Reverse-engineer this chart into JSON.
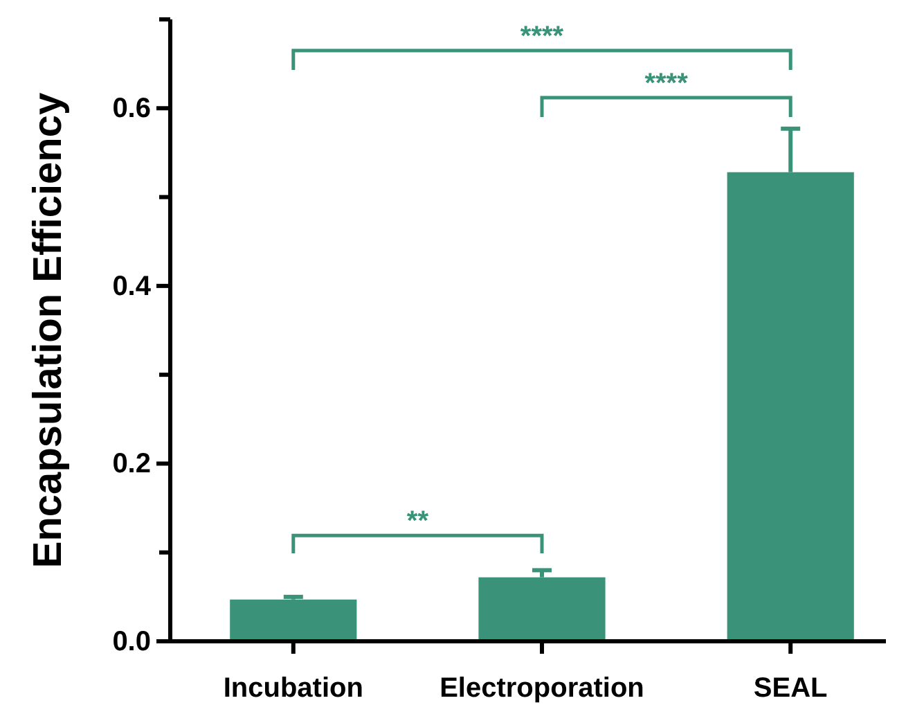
{
  "chart_data": {
    "type": "bar",
    "ylabel": "Encapsulation Efficiency",
    "categories": [
      "Incubation",
      "Electroporation",
      "SEAL"
    ],
    "values": [
      0.047,
      0.072,
      0.528
    ],
    "errors": [
      [
        0.047,
        0.05
      ],
      [
        0.072,
        0.08
      ],
      [
        0.528,
        0.577
      ]
    ],
    "color": "#3a9378",
    "ylim": [
      0,
      0.7
    ],
    "yticks": [
      {
        "value": 0,
        "label": "0.0"
      },
      {
        "value": 0.2,
        "label": "0.2"
      },
      {
        "value": 0.4,
        "label": "0.4"
      },
      {
        "value": 0.6,
        "label": "0.6"
      }
    ],
    "annotations": [
      "****",
      "****",
      "**"
    ],
    "grid": false
  }
}
